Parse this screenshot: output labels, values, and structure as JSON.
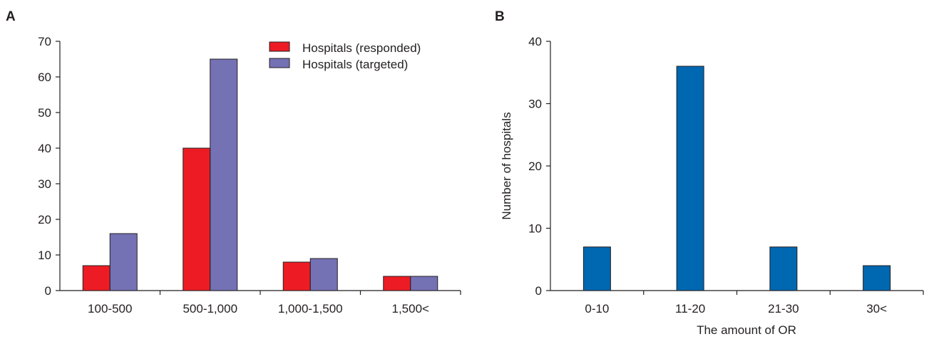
{
  "chart_data": [
    {
      "panel_label": "A",
      "type": "bar",
      "categories": [
        "100-500",
        "500-1,000",
        "1,000-1,500",
        "1,500<"
      ],
      "series": [
        {
          "name": "Hospitals (responded)",
          "color": "#ed1c24",
          "values": [
            7,
            40,
            8,
            4
          ]
        },
        {
          "name": "Hospitals (targeted)",
          "color": "#7471b4",
          "values": [
            16,
            65,
            9,
            4
          ]
        }
      ],
      "ylim": [
        0,
        70
      ],
      "yticks": [
        "0",
        "10",
        "20",
        "30",
        "40",
        "50",
        "60",
        "70"
      ],
      "xlabel": "",
      "ylabel": "",
      "legend": "top-right",
      "grid": false
    },
    {
      "panel_label": "B",
      "type": "bar",
      "categories": [
        "0-10",
        "11-20",
        "21-30",
        "30<"
      ],
      "series": [
        {
          "name": "",
          "color": "#0067b1",
          "values": [
            7,
            36,
            7,
            4
          ]
        }
      ],
      "ylim": [
        0,
        40
      ],
      "yticks": [
        "0",
        "10",
        "20",
        "30",
        "40"
      ],
      "xlabel": "The amount of OR",
      "ylabel": "Number of hospitals",
      "grid": false
    }
  ]
}
